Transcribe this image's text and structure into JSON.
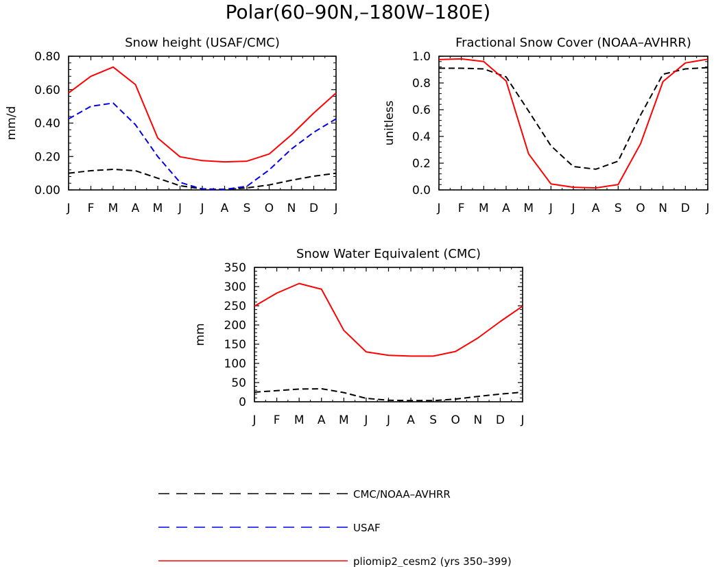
{
  "figure_title": "Polar(60–90N,–180W–180E)",
  "chart_data": [
    {
      "type": "line",
      "title": "Snow height (USAF/CMC)",
      "xlabel": "",
      "ylabel": "mm/d",
      "categories": [
        "J",
        "F",
        "M",
        "A",
        "M",
        "J",
        "J",
        "A",
        "S",
        "O",
        "N",
        "D",
        "J"
      ],
      "ylim": [
        0,
        0.8
      ],
      "yticks": [
        "0.00",
        "0.20",
        "0.40",
        "0.60",
        "0.80"
      ],
      "series": [
        {
          "name": "CMC/NOAA-AVHRR",
          "color": "#000000",
          "dash": true,
          "values": [
            0.1,
            0.115,
            0.123,
            0.115,
            0.07,
            0.025,
            0.006,
            0.003,
            0.012,
            0.03,
            0.058,
            0.082,
            0.1
          ]
        },
        {
          "name": "USAF",
          "color": "#0000ee",
          "dash": true,
          "values": [
            0.425,
            0.5,
            0.52,
            0.39,
            0.2,
            0.045,
            0.005,
            0.003,
            0.022,
            0.12,
            0.245,
            0.345,
            0.425
          ]
        },
        {
          "name": "pliomip2_cesm2 (yrs 350–399)",
          "color": "#ff0000",
          "dash": false,
          "values": [
            0.58,
            0.68,
            0.735,
            0.63,
            0.31,
            0.198,
            0.175,
            0.168,
            0.172,
            0.215,
            0.33,
            0.46,
            0.58
          ]
        }
      ]
    },
    {
      "type": "line",
      "title": "Fractional Snow Cover (NOAA–AVHRR)",
      "xlabel": "",
      "ylabel": "unitless",
      "categories": [
        "J",
        "F",
        "M",
        "A",
        "M",
        "J",
        "J",
        "A",
        "S",
        "O",
        "N",
        "D",
        "J"
      ],
      "ylim": [
        0,
        1.0
      ],
      "yticks": [
        "0.0",
        "0.2",
        "0.4",
        "0.6",
        "0.8",
        "1.0"
      ],
      "series": [
        {
          "name": "CMC/NOAA-AVHRR",
          "color": "#000000",
          "dash": true,
          "values": [
            0.91,
            0.91,
            0.905,
            0.845,
            0.59,
            0.33,
            0.175,
            0.155,
            0.215,
            0.56,
            0.865,
            0.905,
            0.915
          ]
        },
        {
          "name": "pliomip2_cesm2 (yrs 350–399)",
          "color": "#ff0000",
          "dash": false,
          "values": [
            0.975,
            0.98,
            0.96,
            0.815,
            0.27,
            0.045,
            0.02,
            0.015,
            0.04,
            0.345,
            0.81,
            0.95,
            0.978
          ]
        }
      ]
    },
    {
      "type": "line",
      "title": "Snow Water Equivalent (CMC)",
      "xlabel": "",
      "ylabel": "mm",
      "categories": [
        "J",
        "F",
        "M",
        "A",
        "M",
        "J",
        "J",
        "A",
        "S",
        "O",
        "N",
        "D",
        "J"
      ],
      "ylim": [
        0,
        350
      ],
      "yticks": [
        "0",
        "50",
        "100",
        "150",
        "200",
        "250",
        "300",
        "350"
      ],
      "series": [
        {
          "name": "CMC/NOAA-AVHRR",
          "color": "#000000",
          "dash": true,
          "values": [
            25,
            29,
            33,
            34,
            24,
            9,
            4,
            3,
            3,
            7,
            14,
            20,
            25
          ]
        },
        {
          "name": "pliomip2_cesm2 (yrs 350–399)",
          "color": "#ff0000",
          "dash": false,
          "values": [
            249,
            283,
            308,
            293,
            186,
            130,
            121,
            119,
            119,
            131,
            166,
            209,
            249
          ]
        }
      ]
    }
  ],
  "legend": [
    {
      "label": "CMC/NOAA–AVHRR",
      "color": "#000000",
      "dash": true
    },
    {
      "label": "USAF",
      "color": "#0000ee",
      "dash": true
    },
    {
      "label": "pliomip2_cesm2 (yrs 350–399)",
      "color": "#ff0000",
      "dash": false
    }
  ]
}
